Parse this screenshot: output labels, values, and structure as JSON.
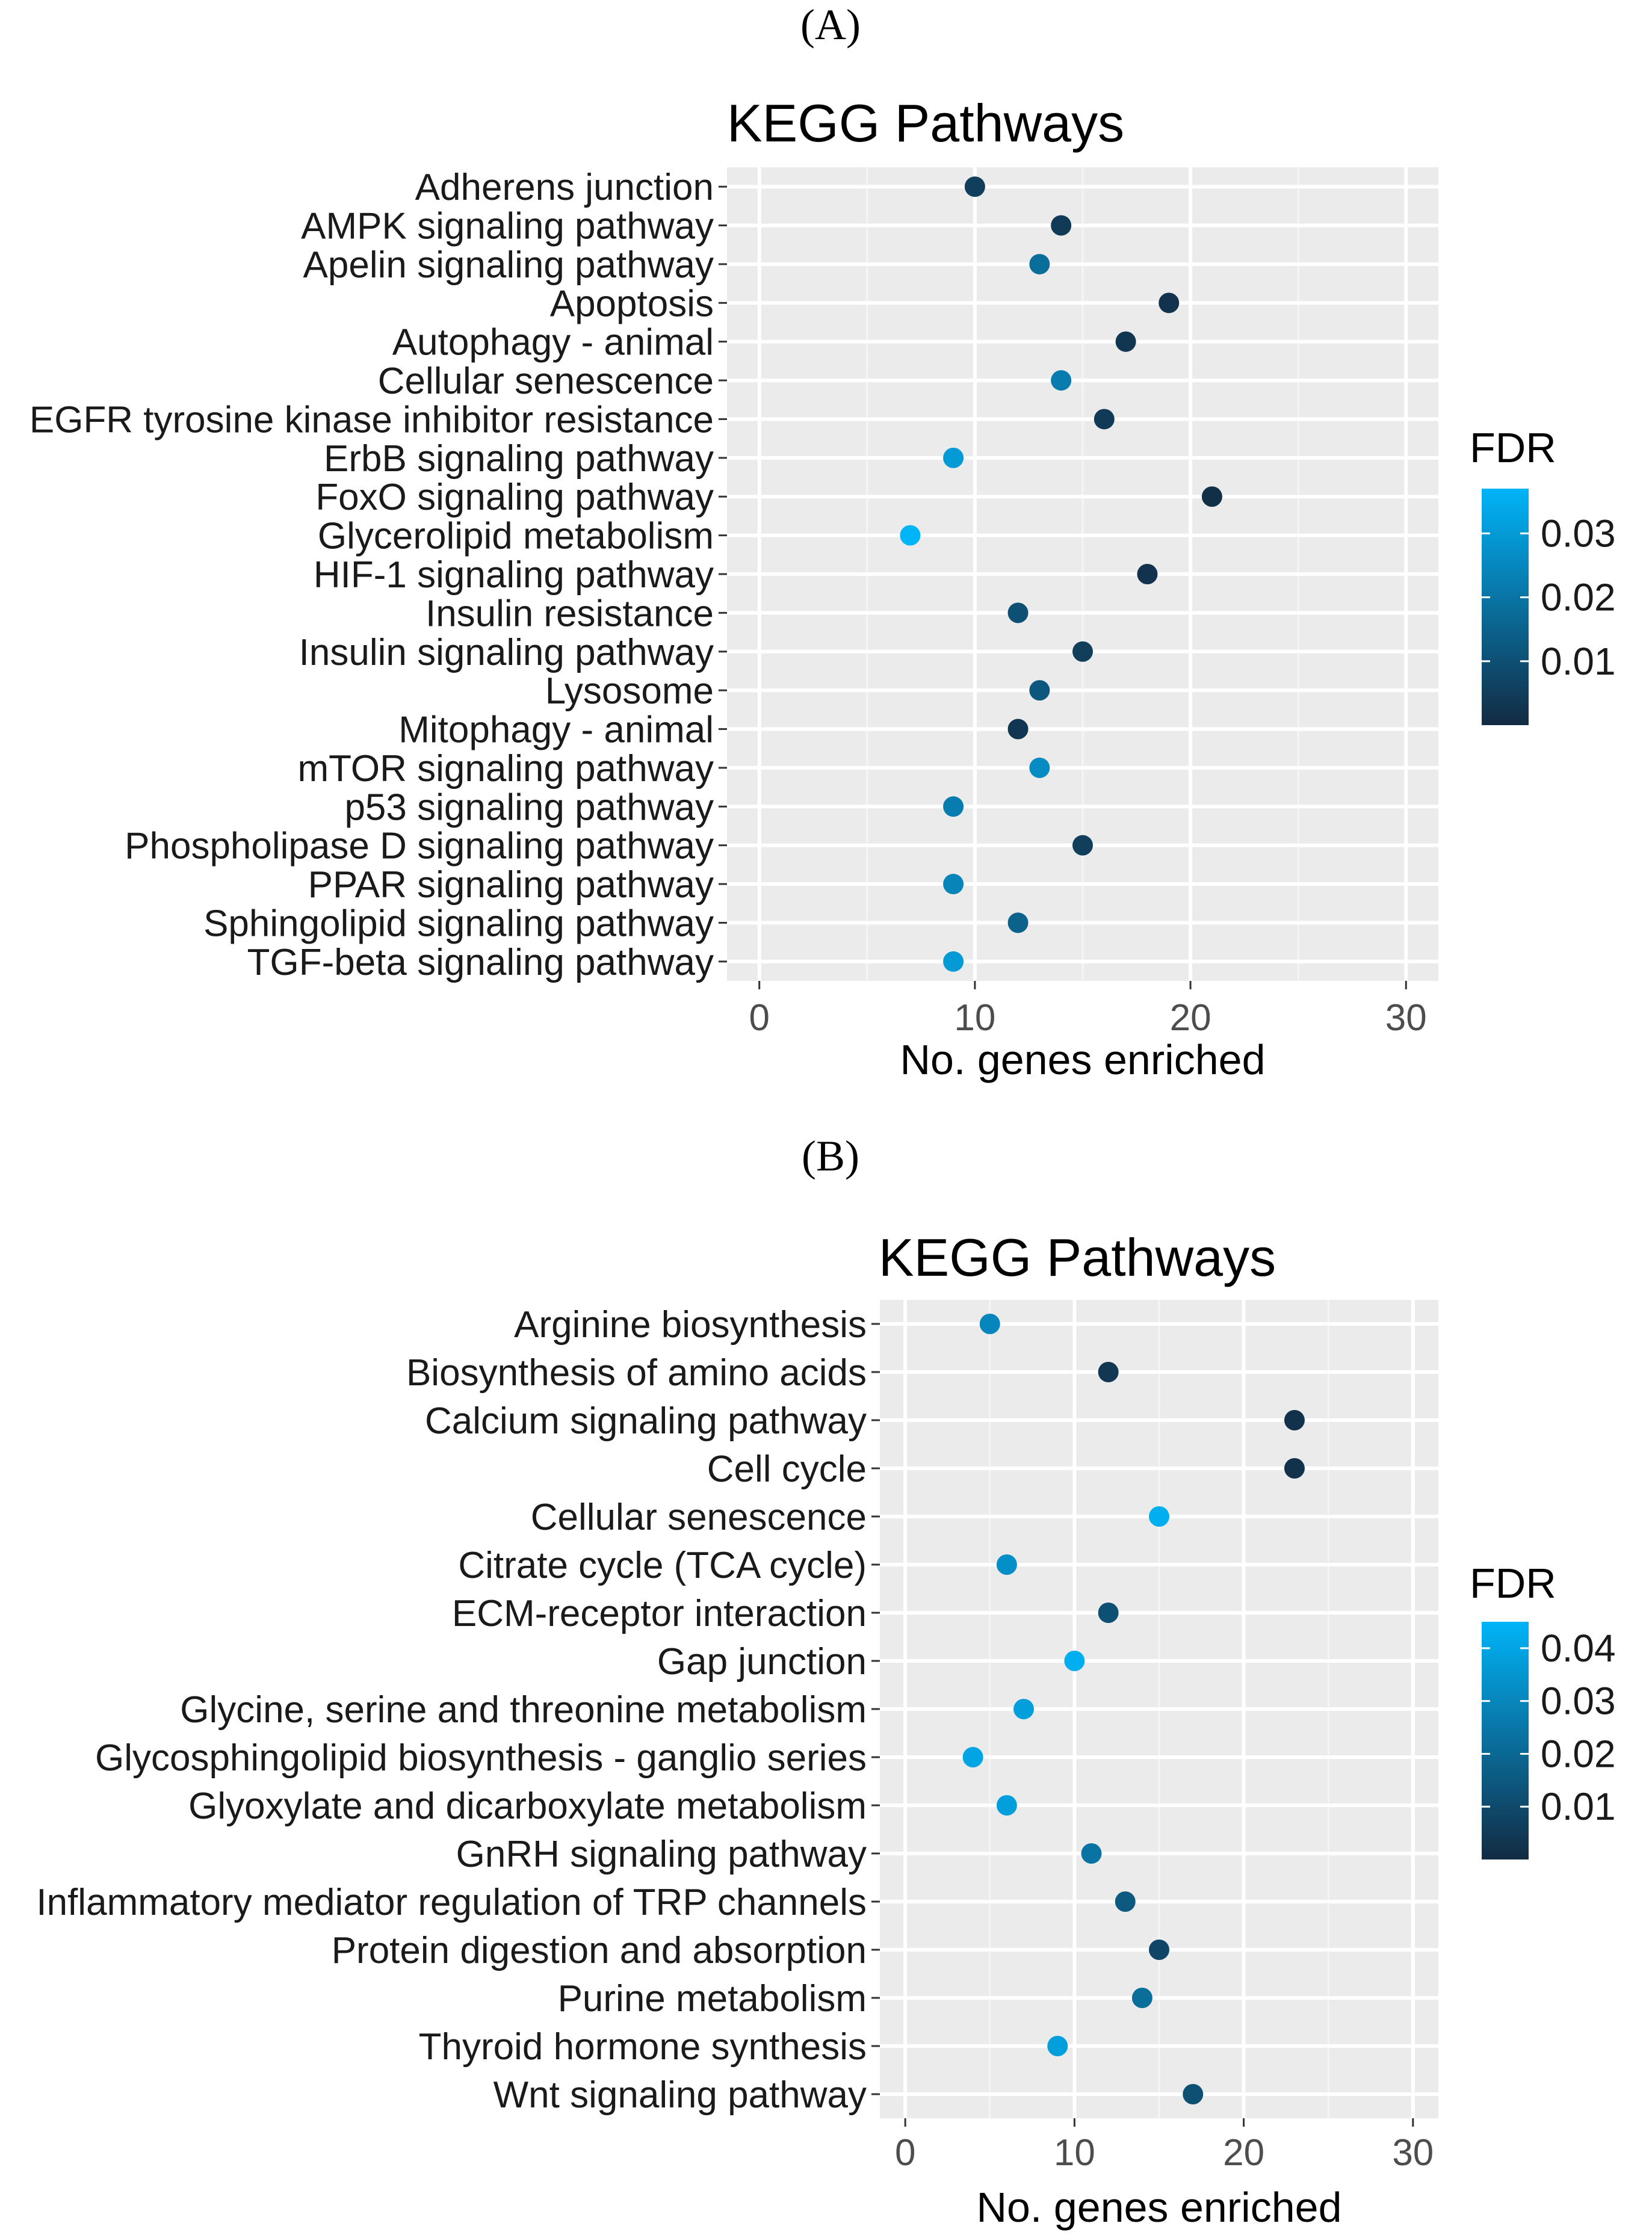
{
  "panels": [
    {
      "letter": "(A)",
      "title": "KEGG Pathways",
      "xlabel": "No. genes enriched",
      "legend_title": "FDR",
      "legend_ticks": [
        "0.03",
        "0.02",
        "0.01"
      ]
    },
    {
      "letter": "(B)",
      "title": "KEGG Pathways",
      "xlabel": "No. genes enriched",
      "legend_title": "FDR",
      "legend_ticks": [
        "0.04",
        "0.03",
        "0.02",
        "0.01"
      ]
    }
  ],
  "chart_data": [
    {
      "type": "scatter",
      "title": "KEGG Pathways",
      "xlabel": "No. genes enriched",
      "ylabel": "",
      "xlim": [
        -1.5,
        31.5
      ],
      "xticks": [
        0,
        10,
        20,
        30
      ],
      "grid": true,
      "legend": "right",
      "color_scale": {
        "name": "FDR",
        "low_color": "#132b43",
        "high_color": "#00b4f8",
        "range": [
          0.0,
          0.037
        ],
        "ticks": [
          0.03,
          0.02,
          0.01
        ]
      },
      "categories": [
        "Adherens junction",
        "AMPK signaling pathway",
        "Apelin signaling pathway",
        "Apoptosis",
        "Autophagy - animal",
        "Cellular senescence",
        "EGFR tyrosine kinase inhibitor resistance",
        "ErbB signaling pathway",
        "FoxO signaling pathway",
        "Glycerolipid metabolism",
        "HIF-1 signaling pathway",
        "Insulin resistance",
        "Insulin signaling pathway",
        "Lysosome",
        "Mitophagy - animal",
        "mTOR signaling pathway",
        "p53 signaling pathway",
        "Phospholipase D signaling pathway",
        "PPAR signaling pathway",
        "Sphingolipid signaling pathway",
        "TGF-beta signaling pathway"
      ],
      "values": [
        10,
        14,
        13,
        19,
        17,
        14,
        16,
        9,
        21,
        7,
        18,
        12,
        15,
        13,
        12,
        13,
        9,
        15,
        9,
        12,
        9
      ],
      "fdr": [
        0.005,
        0.004,
        0.018,
        0.002,
        0.003,
        0.022,
        0.004,
        0.03,
        0.001,
        0.037,
        0.002,
        0.01,
        0.005,
        0.012,
        0.003,
        0.026,
        0.022,
        0.005,
        0.024,
        0.015,
        0.03
      ]
    },
    {
      "type": "scatter",
      "title": "KEGG Pathways",
      "xlabel": "No. genes enriched",
      "ylabel": "",
      "xlim": [
        -1.5,
        31.5
      ],
      "xticks": [
        0,
        10,
        20,
        30
      ],
      "grid": true,
      "legend": "right",
      "color_scale": {
        "name": "FDR",
        "low_color": "#132b43",
        "high_color": "#00b4f8",
        "range": [
          0.0,
          0.045
        ],
        "ticks": [
          0.04,
          0.03,
          0.02,
          0.01
        ]
      },
      "categories": [
        "Arginine biosynthesis",
        "Biosynthesis of amino acids",
        "Calcium signaling pathway",
        "Cell cycle",
        "Cellular senescence",
        "Citrate cycle (TCA cycle)",
        "ECM-receptor interaction",
        "Gap junction",
        "Glycine, serine and threonine metabolism",
        "Glycosphingolipid biosynthesis - ganglio series",
        "Glyoxylate and dicarboxylate metabolism",
        "GnRH signaling pathway",
        "Inflammatory mediator regulation of TRP channels",
        "Protein digestion and absorption",
        "Purine metabolism",
        "Thyroid hormone synthesis",
        "Wnt signaling pathway"
      ],
      "values": [
        5,
        12,
        23,
        23,
        15,
        6,
        12,
        10,
        7,
        4,
        6,
        11,
        13,
        15,
        14,
        9,
        17
      ],
      "fdr": [
        0.03,
        0.004,
        0.002,
        0.002,
        0.043,
        0.033,
        0.012,
        0.043,
        0.038,
        0.04,
        0.038,
        0.024,
        0.015,
        0.009,
        0.022,
        0.038,
        0.012
      ]
    }
  ]
}
